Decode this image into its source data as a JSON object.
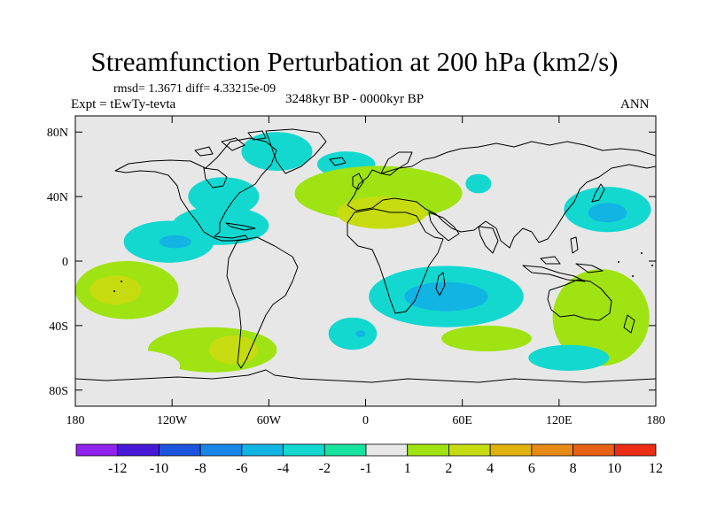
{
  "title": "Streamfunction Perturbation at 200 hPa (km2/s)",
  "stats": "rmsd= 1.3671 diff= 4.33215e-09",
  "experiment": "Expt = tEwTy-tevta",
  "period": "3248kyr BP - 0000kyr BP",
  "season": "ANN",
  "axes": {
    "y_ticks": [
      {
        "lat": 80,
        "label": "80N"
      },
      {
        "lat": 40,
        "label": "40N"
      },
      {
        "lat": 0,
        "label": "0"
      },
      {
        "lat": -40,
        "label": "40S"
      },
      {
        "lat": -80,
        "label": "80S"
      }
    ],
    "x_ticks": [
      {
        "lon": -180,
        "label": "180"
      },
      {
        "lon": -120,
        "label": "120W"
      },
      {
        "lon": -60,
        "label": "60W"
      },
      {
        "lon": 0,
        "label": "0"
      },
      {
        "lon": 60,
        "label": "60E"
      },
      {
        "lon": 120,
        "label": "120E"
      },
      {
        "lon": 180,
        "label": "180"
      }
    ]
  },
  "colorbar": {
    "colors": [
      "#8f22ee",
      "#4719d6",
      "#1b55de",
      "#1887e8",
      "#12b4e4",
      "#12d8d0",
      "#17e3a0",
      "#e7e7e7",
      "#9fe312",
      "#c6dc10",
      "#e0b20d",
      "#e78a16",
      "#e86216",
      "#eb2d16"
    ],
    "labels": [
      "-12",
      "-10",
      "-8",
      "-6",
      "-4",
      "-2",
      "-1",
      "1",
      "2",
      "4",
      "6",
      "8",
      "10",
      "12"
    ]
  },
  "chart_data": {
    "type": "filled-contour-map",
    "title": "Streamfunction Perturbation at 200 hPa (km2/s)",
    "levels": [
      -12,
      -10,
      -8,
      -6,
      -4,
      -2,
      -1,
      1,
      2,
      4,
      6,
      8,
      10,
      12
    ],
    "xlim": [
      -180,
      180
    ],
    "ylim": [
      -90,
      90
    ],
    "features": [
      {
        "lon": -55,
        "lat": 68,
        "rx": 22,
        "ry": 12,
        "value": -2
      },
      {
        "lon": -12,
        "lat": 60,
        "rx": 18,
        "ry": 8,
        "value": -2
      },
      {
        "lon": -88,
        "lat": 40,
        "rx": 22,
        "ry": 12,
        "value": -2
      },
      {
        "lon": -90,
        "lat": 22,
        "rx": 30,
        "ry": 12,
        "value": -2
      },
      {
        "lon": -122,
        "lat": 12,
        "rx": 28,
        "ry": 13,
        "value": -2
      },
      {
        "lon": -118,
        "lat": 12,
        "rx": 10,
        "ry": 4,
        "value": -4
      },
      {
        "lon": 8,
        "lat": 42,
        "rx": 52,
        "ry": 17,
        "value": 2
      },
      {
        "lon": 10,
        "lat": 30,
        "rx": 28,
        "ry": 10,
        "value": 4
      },
      {
        "lon": 70,
        "lat": 48,
        "rx": 8,
        "ry": 6,
        "value": -2
      },
      {
        "lon": 150,
        "lat": 32,
        "rx": 27,
        "ry": 14,
        "value": -2
      },
      {
        "lon": 150,
        "lat": 30,
        "rx": 12,
        "ry": 6,
        "value": -4
      },
      {
        "lon": -148,
        "lat": -18,
        "rx": 32,
        "ry": 18,
        "value": 2
      },
      {
        "lon": -155,
        "lat": -18,
        "rx": 16,
        "ry": 9,
        "value": 4
      },
      {
        "lon": -95,
        "lat": -55,
        "rx": 40,
        "ry": 14,
        "value": 2
      },
      {
        "lon": -82,
        "lat": -55,
        "rx": 15,
        "ry": 9,
        "value": 4
      },
      {
        "lon": -145,
        "lat": -65,
        "rx": 30,
        "ry": 10,
        "value": -1
      },
      {
        "lon": -8,
        "lat": -45,
        "rx": 15,
        "ry": 10,
        "value": -2
      },
      {
        "lon": -3,
        "lat": -45,
        "rx": 3,
        "ry": 2,
        "value": -4
      },
      {
        "lon": 50,
        "lat": -22,
        "rx": 48,
        "ry": 19,
        "value": -2
      },
      {
        "lon": 50,
        "lat": -22,
        "rx": 26,
        "ry": 9,
        "value": -4
      },
      {
        "lon": 75,
        "lat": -48,
        "rx": 28,
        "ry": 8,
        "value": 2
      },
      {
        "lon": 146,
        "lat": -35,
        "rx": 30,
        "ry": 30,
        "value": 2
      },
      {
        "lon": 126,
        "lat": -60,
        "rx": 25,
        "ry": 8,
        "value": -2
      }
    ]
  }
}
